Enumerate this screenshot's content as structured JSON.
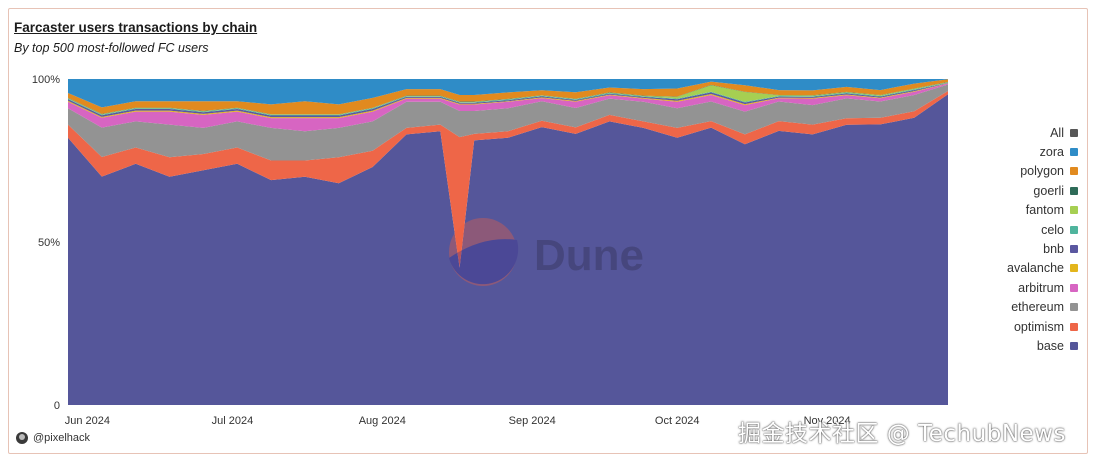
{
  "title": "Farcaster users transactions by chain",
  "subtitle": "By top 500 most-followed FC users",
  "author": "@pixelhack",
  "watermark_brand": "Dune",
  "watermark_text": "掘金技术社区 @ TechubNews",
  "colors": {
    "All": "#575757",
    "zora": "#2f8cc7",
    "polygon": "#e18a1f",
    "goerli": "#2e6b58",
    "fantom": "#a6cf52",
    "celo": "#4fb49d",
    "bnb": "#5a57a0",
    "avalanche": "#e3b51c",
    "arbitrum": "#d765c2",
    "ethereum": "#939393",
    "optimism": "#ee6648",
    "base": "#55569a"
  },
  "legend": [
    "All",
    "zora",
    "polygon",
    "goerli",
    "fantom",
    "celo",
    "bnb",
    "avalanche",
    "arbitrum",
    "ethereum",
    "optimism",
    "base"
  ],
  "chart_data": {
    "type": "area",
    "stacking": "percent",
    "title": "Farcaster users transactions by chain",
    "subtitle": "By top 500 most-followed FC users",
    "x_tick_labels": [
      "Jun 2024",
      "Jul 2024",
      "Aug 2024",
      "Sep 2024",
      "Oct 2024",
      "Nov 2024"
    ],
    "y_tick_labels": [
      "100%",
      "50%",
      "0"
    ],
    "ylim": [
      0,
      100
    ],
    "legend_position": "right",
    "x_range": [
      "2024-05-28",
      "2024-11-26"
    ],
    "x": [
      "2024-05-28",
      "2024-06-04",
      "2024-06-11",
      "2024-06-18",
      "2024-06-25",
      "2024-07-02",
      "2024-07-09",
      "2024-07-16",
      "2024-07-23",
      "2024-07-30",
      "2024-08-06",
      "2024-08-13",
      "2024-08-17",
      "2024-08-20",
      "2024-08-27",
      "2024-09-03",
      "2024-09-10",
      "2024-09-17",
      "2024-09-24",
      "2024-10-01",
      "2024-10-08",
      "2024-10-15",
      "2024-10-22",
      "2024-10-29",
      "2024-11-05",
      "2024-11-12",
      "2024-11-19",
      "2024-11-26"
    ],
    "series": [
      {
        "name": "base",
        "values": [
          82,
          70,
          74,
          70,
          72,
          74,
          69,
          70,
          68,
          73,
          83,
          84,
          42,
          81,
          82,
          86,
          84,
          87,
          85,
          82,
          85,
          80,
          84,
          83,
          85,
          86,
          88,
          96
        ]
      },
      {
        "name": "optimism",
        "values": [
          4,
          6,
          5,
          6,
          5,
          5,
          6,
          5,
          8,
          5,
          2,
          2,
          40,
          2,
          2,
          2,
          2,
          2,
          2,
          3,
          2,
          3,
          3,
          3,
          2,
          2,
          2,
          1
        ]
      },
      {
        "name": "ethereum",
        "values": [
          5,
          9,
          8,
          10,
          8,
          8,
          10,
          9,
          9,
          9,
          8,
          7,
          8,
          7,
          7,
          6,
          6,
          5,
          6,
          6,
          6,
          7,
          6,
          6,
          6,
          5,
          5,
          2
        ]
      },
      {
        "name": "arbitrum",
        "values": [
          2,
          3,
          3,
          4,
          4,
          3,
          3,
          4,
          3,
          3,
          1,
          1,
          2,
          2,
          2,
          1,
          2,
          1,
          1,
          2,
          2,
          2,
          1,
          2,
          1,
          1,
          1,
          0.3
        ]
      },
      {
        "name": "avalanche",
        "values": [
          0.3,
          0.3,
          0.3,
          0.3,
          0.3,
          0.3,
          0.3,
          0.3,
          0.3,
          0.3,
          0.2,
          0.2,
          0.2,
          0.2,
          0.2,
          0.2,
          0.2,
          0.2,
          0.2,
          0.3,
          0.3,
          0.3,
          0.2,
          0.2,
          0.2,
          0.2,
          0.2,
          0.1
        ]
      },
      {
        "name": "bnb",
        "values": [
          0.5,
          0.5,
          0.5,
          0.5,
          0.5,
          0.5,
          0.5,
          0.5,
          0.5,
          0.5,
          0.3,
          0.3,
          0.3,
          0.3,
          0.3,
          0.3,
          0.3,
          0.3,
          0.3,
          0.5,
          0.5,
          0.5,
          0.3,
          0.3,
          0.3,
          0.3,
          0.3,
          0.1
        ]
      },
      {
        "name": "celo",
        "values": [
          0.2,
          0.2,
          0.2,
          0.2,
          0.2,
          0.2,
          0.2,
          0.2,
          0.2,
          0.2,
          0.2,
          0.2,
          0.2,
          0.2,
          0.2,
          0.2,
          0.2,
          0.2,
          0.2,
          0.2,
          0.2,
          0.2,
          0.2,
          0.2,
          0.2,
          0.2,
          0.2,
          0.1
        ]
      },
      {
        "name": "fantom",
        "values": [
          0.1,
          0.1,
          0.1,
          0.1,
          0.1,
          0.1,
          0.1,
          0.1,
          0.1,
          0.1,
          0.1,
          0.1,
          0.1,
          0.1,
          0.1,
          0.1,
          0.1,
          0.1,
          0.1,
          0.5,
          2,
          3,
          0.2,
          0.2,
          0.2,
          0.2,
          0.2,
          0.1
        ]
      },
      {
        "name": "goerli",
        "values": [
          0.1,
          0.1,
          0.1,
          0.1,
          0.1,
          0.1,
          0.1,
          0.1,
          0.1,
          0.1,
          0.1,
          0.1,
          0.1,
          0.1,
          0.1,
          0.1,
          0.1,
          0.1,
          0.1,
          0.1,
          0.1,
          0.1,
          0.1,
          0.1,
          0.1,
          0.1,
          0.1,
          0.1
        ]
      },
      {
        "name": "polygon",
        "values": [
          1.5,
          2,
          2,
          2,
          3,
          2,
          3,
          4,
          3,
          3,
          2,
          2,
          2,
          2,
          2,
          1.5,
          2,
          1.5,
          2,
          2.5,
          1,
          2,
          1.5,
          1.5,
          1.5,
          1.5,
          1.5,
          0.8
        ]
      },
      {
        "name": "zora",
        "values": [
          4.3,
          8.7,
          6.8,
          6.8,
          6.8,
          6.8,
          7.8,
          6.8,
          7.8,
          5.8,
          3.1,
          3.1,
          4.9,
          4.9,
          4.1,
          3.5,
          4.1,
          2.6,
          3.1,
          2.9,
          0.8,
          1.9,
          3.4,
          3.5,
          2.4,
          3.4,
          1.4,
          0.1
        ]
      }
    ]
  }
}
